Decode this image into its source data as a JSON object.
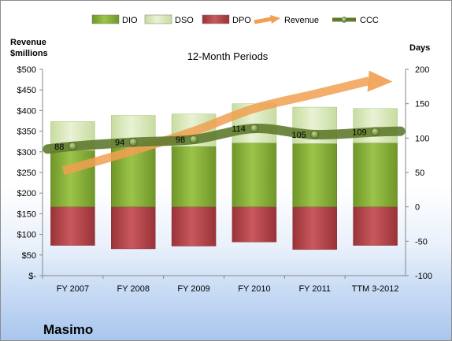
{
  "company": "Masimo",
  "chart_data": {
    "type": "bar",
    "title": "12-Month Periods",
    "categories": [
      "FY 2007",
      "FY 2008",
      "FY 2009",
      "FY 2010",
      "FY 2011",
      "TTM 3-2012"
    ],
    "y_left": {
      "label_lines": [
        "Revenue",
        "$millions"
      ],
      "range": [
        0,
        500
      ],
      "ticks": [
        "$-",
        "$50",
        "$100",
        "$150",
        "$200",
        "$250",
        "$300",
        "$350",
        "$400",
        "$450",
        "$500"
      ]
    },
    "y_right": {
      "label": "Days",
      "range": [
        -100,
        200
      ],
      "ticks": [
        "-100",
        "-50",
        "0",
        "50",
        "100",
        "150",
        "200"
      ]
    },
    "series": [
      {
        "name": "DIO",
        "axis": "right",
        "kind": "stacked-bar",
        "values": [
          82,
          86,
          88,
          93,
          92,
          93
        ],
        "color": "#8bb23a"
      },
      {
        "name": "DSO",
        "axis": "right",
        "kind": "stacked-bar",
        "values": [
          42,
          47,
          47,
          57,
          53,
          50
        ],
        "color": "#d7e6b3"
      },
      {
        "name": "DPO",
        "axis": "right",
        "kind": "negative-bar",
        "values": [
          -56,
          -61,
          -57,
          -51,
          -62,
          -56
        ],
        "color": "#b9474e"
      },
      {
        "name": "Revenue",
        "axis": "left",
        "kind": "arrow",
        "values": [
          254,
          303,
          350,
          405,
          440,
          472
        ],
        "color": "#f0a050"
      },
      {
        "name": "CCC",
        "axis": "right",
        "kind": "line",
        "values": [
          88,
          94,
          98,
          114,
          105,
          109
        ],
        "labels": [
          "88",
          "94",
          "98",
          "114",
          "105",
          "109"
        ],
        "color": "#5f7a2e"
      }
    ],
    "legend": {
      "position": "top",
      "entries": [
        "DIO",
        "DSO",
        "DPO",
        "Revenue",
        "CCC"
      ]
    },
    "grid": false
  }
}
